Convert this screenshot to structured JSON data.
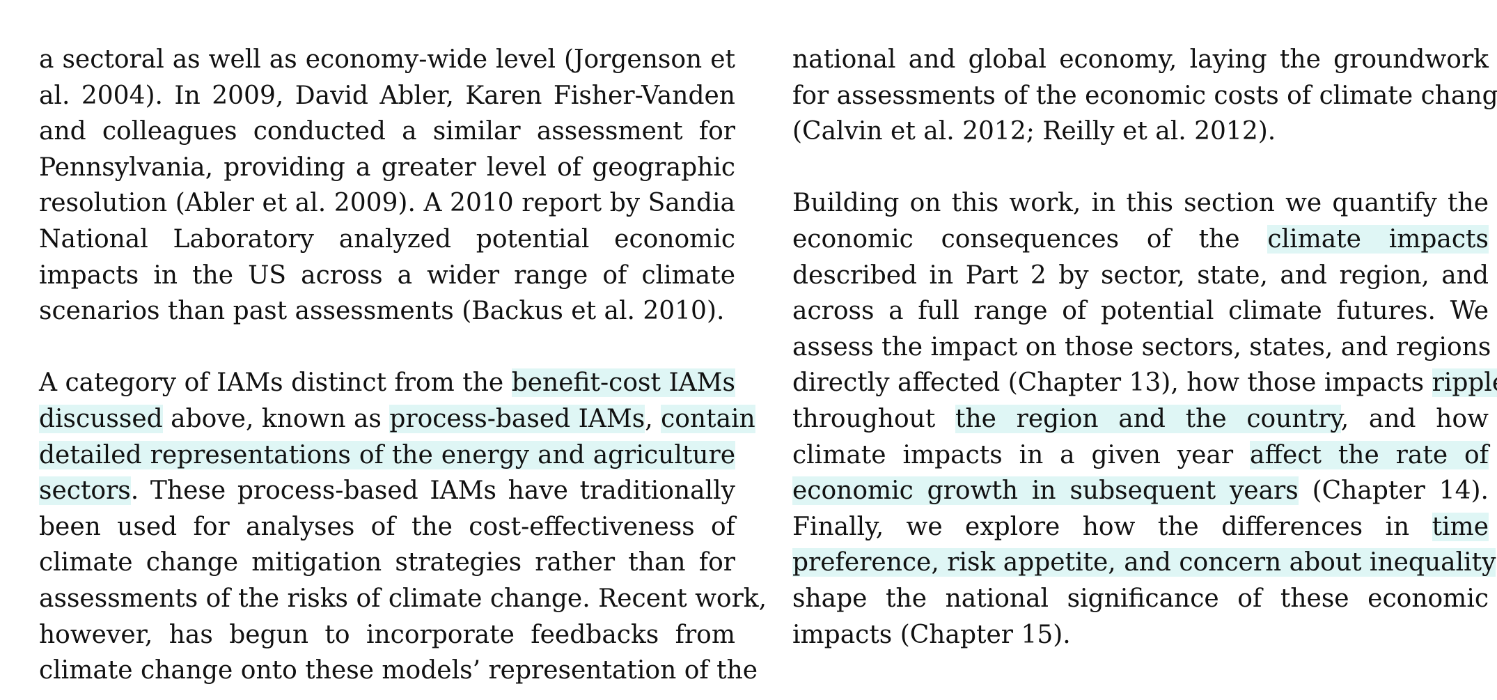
{
  "document": {
    "left_column": {
      "paragraph_1": [
        "a sectoral as well as economy-wide level (Jorgenson et",
        "al. 2004).  In 2009, David Abler, Karen Fisher-Vanden",
        "and colleagues conducted a similar assessment for",
        "Pennsylvania, providing a greater level of geographic",
        "resolution (Abler et al. 2009). A 2010 report by Sandia",
        "National Laboratory analyzed potential economic",
        "impacts in the US across a wider range of climate",
        "scenarios than past assessments (Backus et al. 2010)."
      ],
      "paragraph_2": {
        "l1_a": "A category of IAMs distinct from the ",
        "l1_hl": "benefit-cost IAMs",
        "l2_hl": "discussed",
        "l2_b": " above, known as ",
        "l2_hl2": "process-based IAMs",
        "l2_c": ", ",
        "l2_hl3": "contain",
        "l3_hl": "detailed representations of the energy and agriculture",
        "l4_hl": "sectors",
        "l4_b": ". These process-based IAMs have traditionally",
        "l5": "been used for analyses of the cost-effectiveness of",
        "l6": "climate change mitigation strategies rather than for",
        "l7": "assessments of the risks of climate change. Recent work,",
        "l8": "however, has begun to incorporate feedbacks from",
        "l9": "climate change onto these models’ representation of the"
      }
    },
    "right_column": {
      "paragraph_1": [
        "national and global economy, laying the groundwork",
        "for assessments of the economic costs of climate change",
        "(Calvin et al. 2012; Reilly et al. 2012)."
      ],
      "paragraph_2": {
        "l1": "Building on this work, in this section we quantify the",
        "l2_a": "economic consequences of the ",
        "l2_hl": "climate impacts",
        "l3": "described in Part 2 by sector, state, and region, and",
        "l4": "across a full range of potential climate futures. We",
        "l5": "assess the impact on those sectors, states, and regions",
        "l6_a": "directly affected (Chapter 13), how those impacts ",
        "l6_hl": "ripple",
        "l7_a": "throughout ",
        "l7_hl": "the region and the country",
        "l7_b": ", and how",
        "l8_a": "climate impacts in a given year ",
        "l8_hl": "affect the rate of",
        "l9_hl": "economic growth in subsequent years",
        "l9_b": " (Chapter 14).",
        "l10_a": "Finally, we explore how the differences in ",
        "l10_hl": "time",
        "l11_hl": "preference, risk appetite, and concern about inequality",
        "l12": "shape the national significance of these economic",
        "l13": "impacts (Chapter 15)."
      }
    },
    "highlight_color": "#dff6f5"
  }
}
